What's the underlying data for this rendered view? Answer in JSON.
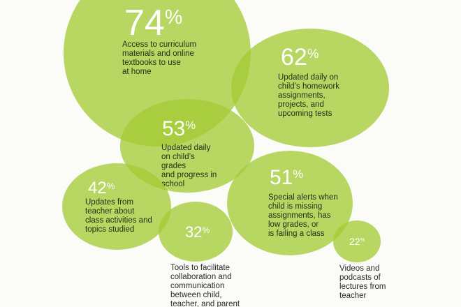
{
  "chart_data": {
    "type": "bubble",
    "items": [
      {
        "id": "curriculum",
        "value": 74,
        "value_label": "74",
        "unit": "%",
        "label": "Access to curriculum\nmaterials and online\ntextbooks to use\nat home"
      },
      {
        "id": "homework",
        "value": 62,
        "value_label": "62",
        "unit": "%",
        "label": "Updated daily on\nchild’s homework\nassignments,\nprojects, and\nupcoming tests"
      },
      {
        "id": "grades",
        "value": 53,
        "value_label": "53",
        "unit": "%",
        "label": "Updated daily\non child’s\ngrades\nand progress in\nschool"
      },
      {
        "id": "alerts",
        "value": 51,
        "value_label": "51",
        "unit": "%",
        "label": "Special alerts when\nchild is missing\nassignments, has\nlow grades, or\nis failing a class"
      },
      {
        "id": "class-activities",
        "value": 42,
        "value_label": "42",
        "unit": "%",
        "label": "Updates from\nteacher about\nclass activities and\ntopics studied"
      },
      {
        "id": "collaboration",
        "value": 32,
        "value_label": "32",
        "unit": "%",
        "label": "Tools to facilitate\ncollaboration and\ncommunication\nbetween child,\nteacher, and parent"
      },
      {
        "id": "videos",
        "value": 22,
        "value_label": "22",
        "unit": "%",
        "label": "Videos and\npodcasts of\nlectures from\nteacher"
      }
    ]
  },
  "colors": {
    "bubble_fill": "#a4cc37",
    "value_text": "#ffffff",
    "label_text": "#243016"
  }
}
